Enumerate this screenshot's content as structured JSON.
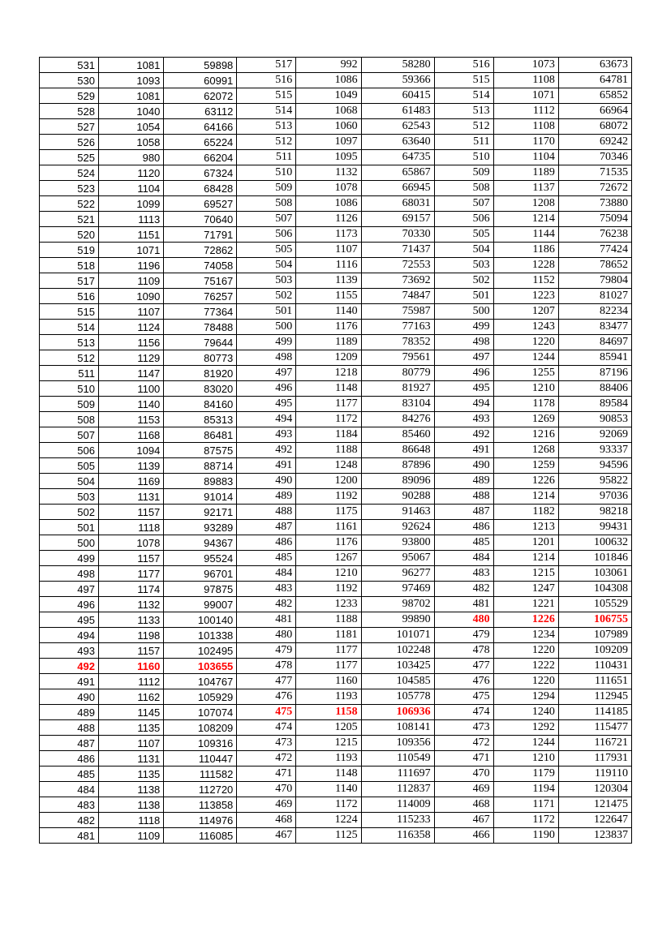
{
  "table": {
    "highlight_color": "#ff0000",
    "border_color": "#000000",
    "background_color": "#ffffff",
    "font_serif": "Times New Roman",
    "font_sans": "Arial",
    "rows": [
      {
        "a": [
          531,
          1081,
          59898
        ],
        "b": [
          517,
          992,
          58280
        ],
        "c": [
          516,
          1073,
          63673
        ]
      },
      {
        "a": [
          530,
          1093,
          60991
        ],
        "b": [
          516,
          1086,
          59366
        ],
        "c": [
          515,
          1108,
          64781
        ]
      },
      {
        "a": [
          529,
          1081,
          62072
        ],
        "b": [
          515,
          1049,
          60415
        ],
        "c": [
          514,
          1071,
          65852
        ]
      },
      {
        "a": [
          528,
          1040,
          63112
        ],
        "b": [
          514,
          1068,
          61483
        ],
        "c": [
          513,
          1112,
          66964
        ]
      },
      {
        "a": [
          527,
          1054,
          64166
        ],
        "b": [
          513,
          1060,
          62543
        ],
        "c": [
          512,
          1108,
          68072
        ]
      },
      {
        "a": [
          526,
          1058,
          65224
        ],
        "b": [
          512,
          1097,
          63640
        ],
        "c": [
          511,
          1170,
          69242
        ]
      },
      {
        "a": [
          525,
          980,
          66204
        ],
        "b": [
          511,
          1095,
          64735
        ],
        "c": [
          510,
          1104,
          70346
        ]
      },
      {
        "a": [
          524,
          1120,
          67324
        ],
        "b": [
          510,
          1132,
          65867
        ],
        "c": [
          509,
          1189,
          71535
        ]
      },
      {
        "a": [
          523,
          1104,
          68428
        ],
        "b": [
          509,
          1078,
          66945
        ],
        "c": [
          508,
          1137,
          72672
        ]
      },
      {
        "a": [
          522,
          1099,
          69527
        ],
        "b": [
          508,
          1086,
          68031
        ],
        "c": [
          507,
          1208,
          73880
        ]
      },
      {
        "a": [
          521,
          1113,
          70640
        ],
        "b": [
          507,
          1126,
          69157
        ],
        "c": [
          506,
          1214,
          75094
        ]
      },
      {
        "a": [
          520,
          1151,
          71791
        ],
        "b": [
          506,
          1173,
          70330
        ],
        "c": [
          505,
          1144,
          76238
        ]
      },
      {
        "a": [
          519,
          1071,
          72862
        ],
        "b": [
          505,
          1107,
          71437
        ],
        "c": [
          504,
          1186,
          77424
        ]
      },
      {
        "a": [
          518,
          1196,
          74058
        ],
        "b": [
          504,
          1116,
          72553
        ],
        "c": [
          503,
          1228,
          78652
        ]
      },
      {
        "a": [
          517,
          1109,
          75167
        ],
        "b": [
          503,
          1139,
          73692
        ],
        "c": [
          502,
          1152,
          79804
        ]
      },
      {
        "a": [
          516,
          1090,
          76257
        ],
        "b": [
          502,
          1155,
          74847
        ],
        "c": [
          501,
          1223,
          81027
        ]
      },
      {
        "a": [
          515,
          1107,
          77364
        ],
        "b": [
          501,
          1140,
          75987
        ],
        "c": [
          500,
          1207,
          82234
        ]
      },
      {
        "a": [
          514,
          1124,
          78488
        ],
        "b": [
          500,
          1176,
          77163
        ],
        "c": [
          499,
          1243,
          83477
        ]
      },
      {
        "a": [
          513,
          1156,
          79644
        ],
        "b": [
          499,
          1189,
          78352
        ],
        "c": [
          498,
          1220,
          84697
        ]
      },
      {
        "a": [
          512,
          1129,
          80773
        ],
        "b": [
          498,
          1209,
          79561
        ],
        "c": [
          497,
          1244,
          85941
        ]
      },
      {
        "a": [
          511,
          1147,
          81920
        ],
        "b": [
          497,
          1218,
          80779
        ],
        "c": [
          496,
          1255,
          87196
        ]
      },
      {
        "a": [
          510,
          1100,
          83020
        ],
        "b": [
          496,
          1148,
          81927
        ],
        "c": [
          495,
          1210,
          88406
        ]
      },
      {
        "a": [
          509,
          1140,
          84160
        ],
        "b": [
          495,
          1177,
          83104
        ],
        "c": [
          494,
          1178,
          89584
        ]
      },
      {
        "a": [
          508,
          1153,
          85313
        ],
        "b": [
          494,
          1172,
          84276
        ],
        "c": [
          493,
          1269,
          90853
        ]
      },
      {
        "a": [
          507,
          1168,
          86481
        ],
        "b": [
          493,
          1184,
          85460
        ],
        "c": [
          492,
          1216,
          92069
        ]
      },
      {
        "a": [
          506,
          1094,
          87575
        ],
        "b": [
          492,
          1188,
          86648
        ],
        "c": [
          491,
          1268,
          93337
        ]
      },
      {
        "a": [
          505,
          1139,
          88714
        ],
        "b": [
          491,
          1248,
          87896
        ],
        "c": [
          490,
          1259,
          94596
        ]
      },
      {
        "a": [
          504,
          1169,
          89883
        ],
        "b": [
          490,
          1200,
          89096
        ],
        "c": [
          489,
          1226,
          95822
        ]
      },
      {
        "a": [
          503,
          1131,
          91014
        ],
        "b": [
          489,
          1192,
          90288
        ],
        "c": [
          488,
          1214,
          97036
        ]
      },
      {
        "a": [
          502,
          1157,
          92171
        ],
        "b": [
          488,
          1175,
          91463
        ],
        "c": [
          487,
          1182,
          98218
        ]
      },
      {
        "a": [
          501,
          1118,
          93289
        ],
        "b": [
          487,
          1161,
          92624
        ],
        "c": [
          486,
          1213,
          99431
        ]
      },
      {
        "a": [
          500,
          1078,
          94367
        ],
        "b": [
          486,
          1176,
          93800
        ],
        "c": [
          485,
          1201,
          100632
        ]
      },
      {
        "a": [
          499,
          1157,
          95524
        ],
        "b": [
          485,
          1267,
          95067
        ],
        "c": [
          484,
          1214,
          101846
        ]
      },
      {
        "a": [
          498,
          1177,
          96701
        ],
        "b": [
          484,
          1210,
          96277
        ],
        "c": [
          483,
          1215,
          103061
        ]
      },
      {
        "a": [
          497,
          1174,
          97875
        ],
        "b": [
          483,
          1192,
          97469
        ],
        "c": [
          482,
          1247,
          104308
        ]
      },
      {
        "a": [
          496,
          1132,
          99007
        ],
        "b": [
          482,
          1233,
          98702
        ],
        "c": [
          481,
          1221,
          105529
        ]
      },
      {
        "a": [
          495,
          1133,
          100140
        ],
        "b": [
          481,
          1188,
          99890
        ],
        "c": [
          480,
          1226,
          106755
        ],
        "hl": "c"
      },
      {
        "a": [
          494,
          1198,
          101338
        ],
        "b": [
          480,
          1181,
          101071
        ],
        "c": [
          479,
          1234,
          107989
        ]
      },
      {
        "a": [
          493,
          1157,
          102495
        ],
        "b": [
          479,
          1177,
          102248
        ],
        "c": [
          478,
          1220,
          109209
        ]
      },
      {
        "a": [
          492,
          1160,
          103655
        ],
        "b": [
          478,
          1177,
          103425
        ],
        "c": [
          477,
          1222,
          110431
        ],
        "hl": "a"
      },
      {
        "a": [
          491,
          1112,
          104767
        ],
        "b": [
          477,
          1160,
          104585
        ],
        "c": [
          476,
          1220,
          111651
        ]
      },
      {
        "a": [
          490,
          1162,
          105929
        ],
        "b": [
          476,
          1193,
          105778
        ],
        "c": [
          475,
          1294,
          112945
        ]
      },
      {
        "a": [
          489,
          1145,
          107074
        ],
        "b": [
          475,
          1158,
          106936
        ],
        "c": [
          474,
          1240,
          114185
        ],
        "hl": "b"
      },
      {
        "a": [
          488,
          1135,
          108209
        ],
        "b": [
          474,
          1205,
          108141
        ],
        "c": [
          473,
          1292,
          115477
        ]
      },
      {
        "a": [
          487,
          1107,
          109316
        ],
        "b": [
          473,
          1215,
          109356
        ],
        "c": [
          472,
          1244,
          116721
        ]
      },
      {
        "a": [
          486,
          1131,
          110447
        ],
        "b": [
          472,
          1193,
          110549
        ],
        "c": [
          471,
          1210,
          117931
        ]
      },
      {
        "a": [
          485,
          1135,
          111582
        ],
        "b": [
          471,
          1148,
          111697
        ],
        "c": [
          470,
          1179,
          119110
        ]
      },
      {
        "a": [
          484,
          1138,
          112720
        ],
        "b": [
          470,
          1140,
          112837
        ],
        "c": [
          469,
          1194,
          120304
        ]
      },
      {
        "a": [
          483,
          1138,
          113858
        ],
        "b": [
          469,
          1172,
          114009
        ],
        "c": [
          468,
          1171,
          121475
        ]
      },
      {
        "a": [
          482,
          1118,
          114976
        ],
        "b": [
          468,
          1224,
          115233
        ],
        "c": [
          467,
          1172,
          122647
        ]
      },
      {
        "a": [
          481,
          1109,
          116085
        ],
        "b": [
          467,
          1125,
          116358
        ],
        "c": [
          466,
          1190,
          123837
        ]
      }
    ]
  }
}
